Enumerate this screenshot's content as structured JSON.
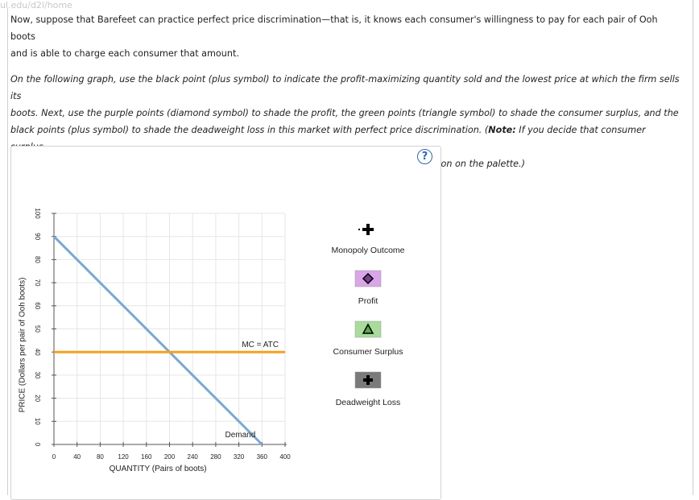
{
  "url_fragment": "ul.edu/d2l/home",
  "intro": {
    "line1": "Now, suppose that Barefeet can practice perfect price discrimination—that is, it knows each consumer's willingness to pay for each pair of Ooh boots",
    "line2": "and is able to charge each consumer that amount."
  },
  "instructions": {
    "line1": "On the following graph, use the black point (plus symbol) to indicate the profit-maximizing quantity sold and the lowest price at which the firm sells its",
    "line2": "boots. Next, use the purple points (diamond symbol) to shade the profit, the green points (triangle symbol) to shade the consumer surplus, and the",
    "line3": "black points (plus symbol) to shade the deadweight loss in this market with perfect price discrimination. (",
    "note_label": "Note:",
    "line3b": " If you decide that consumer surplus,",
    "line4": "profit, or deadweight loss equals zero, indicate this by leaving that element in its original position on the palette.)"
  },
  "help_icon": "?",
  "chart_data": {
    "type": "line",
    "xlabel": "QUANTITY (Pairs of boots)",
    "ylabel": "PRICE (Dollars per pair of Ooh boots)",
    "xlim": [
      0,
      400
    ],
    "ylim": [
      0,
      100
    ],
    "x_ticks": [
      0,
      40,
      80,
      120,
      160,
      200,
      240,
      280,
      320,
      360,
      400
    ],
    "y_ticks": [
      0,
      10,
      20,
      30,
      40,
      50,
      60,
      70,
      80,
      90,
      100
    ],
    "grid": true,
    "series": [
      {
        "name": "Demand",
        "color": "#7ba7d4",
        "points": [
          [
            0,
            90
          ],
          [
            360,
            0
          ]
        ]
      },
      {
        "name": "MC = ATC",
        "color": "#f5a11e",
        "points": [
          [
            0,
            40
          ],
          [
            400,
            40
          ]
        ]
      }
    ]
  },
  "palette": {
    "items": [
      {
        "label": "Monopoly Outcome",
        "symbol": "plus",
        "color": "#000000",
        "bg": "none"
      },
      {
        "label": "Profit",
        "symbol": "diamond",
        "color": "#000000",
        "bg": "#d9a6e8"
      },
      {
        "label": "Consumer Surplus",
        "symbol": "triangle",
        "color": "#000000",
        "bg": "#a9dc9c"
      },
      {
        "label": "Deadweight Loss",
        "symbol": "plus",
        "color": "#000000",
        "bg": "#7a7a7a"
      }
    ]
  }
}
